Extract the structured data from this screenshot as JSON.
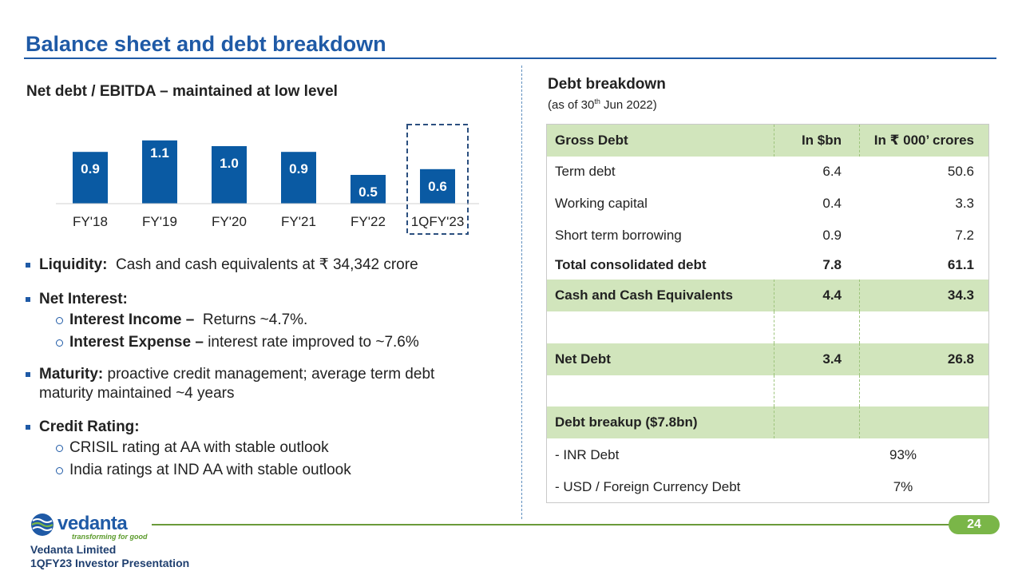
{
  "title": "Balance sheet and debt breakdown",
  "chart_data": {
    "type": "bar",
    "title": "Net debt / EBITDA – maintained at low level",
    "categories": [
      "FY'18",
      "FY'19",
      "FY'20",
      "FY'21",
      "FY'22",
      "1QFY'23"
    ],
    "values": [
      0.9,
      1.1,
      1.0,
      0.9,
      0.5,
      0.6
    ],
    "value_labels": [
      "0.9",
      "1.1",
      "1.0",
      "0.9",
      "0.5",
      "0.6"
    ],
    "ylim": [
      0,
      1.25
    ],
    "highlighted_category": "1QFY'23",
    "bar_color": "#0a5aa3",
    "xlabel": "",
    "ylabel": ""
  },
  "bullets": {
    "liquidity_label": "Liquidity:",
    "liquidity_text": "Cash and cash equivalents at ₹ 34,342 crore",
    "net_interest_label": "Net Interest:",
    "interest_income_label": "Interest Income –",
    "interest_income_text": "Returns ~4.7%.",
    "interest_expense_label": "Interest Expense –",
    "interest_expense_text": "interest rate improved to ~7.6%",
    "maturity_label": "Maturity:",
    "maturity_text": "proactive credit management; average term debt",
    "maturity_text2": "maturity maintained ~4 years",
    "credit_label": "Credit Rating:",
    "credit_item1": "CRISIL rating at AA with stable outlook",
    "credit_item2": "India ratings at IND AA with stable outlook"
  },
  "debt": {
    "title": "Debt breakdown",
    "subtitle_pre": "(as of 30",
    "subtitle_sup": "th",
    "subtitle_post": " Jun 2022)",
    "header": [
      "Gross Debt",
      "In $bn",
      "In ₹ 000’ crores"
    ],
    "rows": [
      [
        "Term debt",
        "6.4",
        "50.6"
      ],
      [
        "Working capital",
        "0.4",
        "3.3"
      ],
      [
        "Short term borrowing",
        "0.9",
        "7.2"
      ],
      [
        "Total consolidated debt",
        "7.8",
        "61.1"
      ],
      [
        "Cash and Cash Equivalents",
        "4.4",
        "34.3"
      ],
      [
        "Net Debt",
        "3.4",
        "26.8"
      ]
    ],
    "breakup_label": "Debt breakup ($7.8bn)",
    "breakup": [
      [
        "- INR Debt",
        "93%"
      ],
      [
        "- USD / Foreign Currency Debt",
        "7%"
      ]
    ]
  },
  "footer": {
    "logo_word": "vedanta",
    "logo_tagline": "transforming for good",
    "company": "Vedanta Limited",
    "presentation": "1QFY23 Investor Presentation",
    "page": "24"
  },
  "colors": {
    "brand_blue": "#1f5aa6",
    "bar_blue": "#0a5aa3",
    "table_green": "#d1e5bc",
    "badge_green": "#7ab648"
  }
}
